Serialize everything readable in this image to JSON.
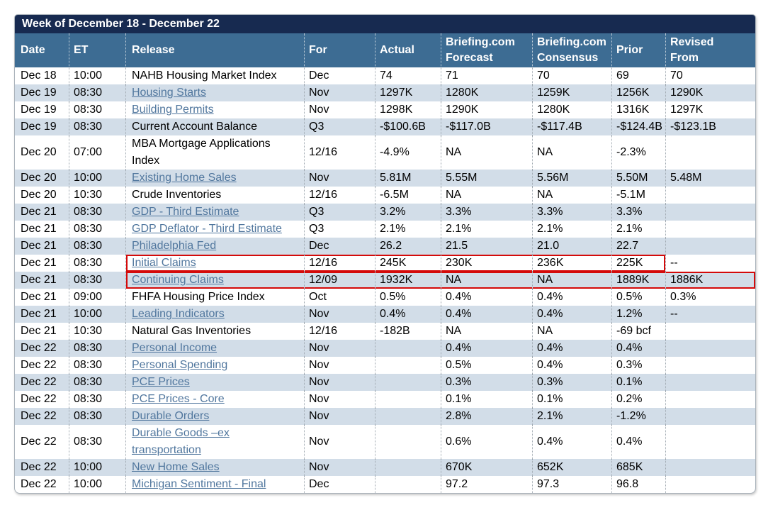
{
  "title": "Week of December 18 - December 22",
  "colors": {
    "title_bar": "#172a50",
    "header_row": "#3d6c93",
    "stripe_row": "#d2dde8",
    "link": "#51779e",
    "highlight_box": "#d40a0a"
  },
  "table": {
    "columns": [
      {
        "key": "date",
        "label": [
          "Date"
        ]
      },
      {
        "key": "et",
        "label": [
          "ET"
        ]
      },
      {
        "key": "release",
        "label": [
          "Release"
        ]
      },
      {
        "key": "for",
        "label": [
          "For"
        ]
      },
      {
        "key": "actual",
        "label": [
          "Actual"
        ]
      },
      {
        "key": "forecast",
        "label": [
          "Briefing.com",
          "Forecast"
        ]
      },
      {
        "key": "consensus",
        "label": [
          "Briefing.com",
          "Consensus"
        ]
      },
      {
        "key": "prior",
        "label": [
          "Prior"
        ]
      },
      {
        "key": "revised",
        "label": [
          "Revised",
          "From"
        ]
      }
    ],
    "rows": [
      {
        "date": "Dec 18",
        "et": "10:00",
        "release": "NAHB Housing Market Index",
        "link": false,
        "for": "Dec",
        "actual": "74",
        "forecast": "71",
        "consensus": "70",
        "prior": "69",
        "revised": "70",
        "highlight": ""
      },
      {
        "date": "Dec 19",
        "et": "08:30",
        "release": "Housing Starts",
        "link": true,
        "for": "Nov",
        "actual": "1297K",
        "forecast": "1280K",
        "consensus": "1259K",
        "prior": "1256K",
        "revised": "1290K",
        "highlight": ""
      },
      {
        "date": "Dec 19",
        "et": "08:30",
        "release": "Building Permits",
        "link": true,
        "for": "Nov",
        "actual": "1298K",
        "forecast": "1290K",
        "consensus": "1280K",
        "prior": "1316K",
        "revised": "1297K",
        "highlight": ""
      },
      {
        "date": "Dec 19",
        "et": "08:30",
        "release": "Current Account Balance",
        "link": false,
        "for": "Q3",
        "actual": "-$100.6B",
        "forecast": "-$117.0B",
        "consensus": "-$117.4B",
        "prior": "-$124.4B",
        "revised": "-$123.1B",
        "highlight": ""
      },
      {
        "date": "Dec 20",
        "et": "07:00",
        "release": "MBA Mortgage Applications Index",
        "link": false,
        "for": "12/16",
        "actual": "-4.9%",
        "forecast": "NA",
        "consensus": "NA",
        "prior": "-2.3%",
        "revised": "",
        "highlight": ""
      },
      {
        "date": "Dec 20",
        "et": "10:00",
        "release": "Existing Home Sales",
        "link": true,
        "for": "Nov",
        "actual": "5.81M",
        "forecast": "5.55M",
        "consensus": "5.56M",
        "prior": "5.50M",
        "revised": "5.48M",
        "highlight": ""
      },
      {
        "date": "Dec 20",
        "et": "10:30",
        "release": "Crude Inventories",
        "link": false,
        "for": "12/16",
        "actual": "-6.5M",
        "forecast": "NA",
        "consensus": "NA",
        "prior": "-5.1M",
        "revised": "",
        "highlight": ""
      },
      {
        "date": "Dec 21",
        "et": "08:30",
        "release": "GDP - Third Estimate",
        "link": true,
        "for": "Q3",
        "actual": "3.2%",
        "forecast": "3.3%",
        "consensus": "3.3%",
        "prior": "3.3%",
        "revised": "",
        "highlight": ""
      },
      {
        "date": "Dec 21",
        "et": "08:30",
        "release": "GDP Deflator - Third Estimate",
        "link": true,
        "for": "Q3",
        "actual": "2.1%",
        "forecast": "2.1%",
        "consensus": "2.1%",
        "prior": "2.1%",
        "revised": "",
        "highlight": ""
      },
      {
        "date": "Dec 21",
        "et": "08:30",
        "release": "Philadelphia Fed",
        "link": true,
        "for": "Dec",
        "actual": "26.2",
        "forecast": "21.5",
        "consensus": "21.0",
        "prior": "22.7",
        "revised": "",
        "highlight": ""
      },
      {
        "date": "Dec 21",
        "et": "08:30",
        "release": "Initial Claims",
        "link": true,
        "for": "12/16",
        "actual": "245K",
        "forecast": "230K",
        "consensus": "236K",
        "prior": "225K",
        "revised": "--",
        "highlight": "box1"
      },
      {
        "date": "Dec 21",
        "et": "08:30",
        "release": "Continuing Claims",
        "link": true,
        "for": "12/09",
        "actual": "1932K",
        "forecast": "NA",
        "consensus": "NA",
        "prior": "1889K",
        "revised": "1886K",
        "highlight": "box2"
      },
      {
        "date": "Dec 21",
        "et": "09:00",
        "release": "FHFA Housing Price Index",
        "link": false,
        "for": "Oct",
        "actual": "0.5%",
        "forecast": "0.4%",
        "consensus": "0.4%",
        "prior": "0.5%",
        "revised": "0.3%",
        "highlight": ""
      },
      {
        "date": "Dec 21",
        "et": "10:00",
        "release": "Leading Indicators",
        "link": true,
        "for": "Nov",
        "actual": "0.4%",
        "forecast": "0.4%",
        "consensus": "0.4%",
        "prior": "1.2%",
        "revised": "--",
        "highlight": ""
      },
      {
        "date": "Dec 21",
        "et": "10:30",
        "release": "Natural Gas Inventories",
        "link": false,
        "for": "12/16",
        "actual": "-182B",
        "forecast": "NA",
        "consensus": "NA",
        "prior": "-69 bcf",
        "revised": "",
        "highlight": ""
      },
      {
        "date": "Dec 22",
        "et": "08:30",
        "release": "Personal Income",
        "link": true,
        "for": "Nov",
        "actual": "",
        "forecast": "0.4%",
        "consensus": "0.4%",
        "prior": "0.4%",
        "revised": "",
        "highlight": ""
      },
      {
        "date": "Dec 22",
        "et": "08:30",
        "release": "Personal Spending",
        "link": true,
        "for": "Nov",
        "actual": "",
        "forecast": "0.5%",
        "consensus": "0.4%",
        "prior": "0.3%",
        "revised": "",
        "highlight": ""
      },
      {
        "date": "Dec 22",
        "et": "08:30",
        "release": "PCE Prices",
        "link": true,
        "for": "Nov",
        "actual": "",
        "forecast": "0.3%",
        "consensus": "0.3%",
        "prior": "0.1%",
        "revised": "",
        "highlight": ""
      },
      {
        "date": "Dec 22",
        "et": "08:30",
        "release": "PCE Prices - Core",
        "link": true,
        "for": "Nov",
        "actual": "",
        "forecast": "0.1%",
        "consensus": "0.1%",
        "prior": "0.2%",
        "revised": "",
        "highlight": ""
      },
      {
        "date": "Dec 22",
        "et": "08:30",
        "release": "Durable Orders",
        "link": true,
        "for": "Nov",
        "actual": "",
        "forecast": "2.8%",
        "consensus": "2.1%",
        "prior": "-1.2%",
        "revised": "",
        "highlight": ""
      },
      {
        "date": "Dec 22",
        "et": "08:30",
        "release": "Durable Goods –ex transportation",
        "link": true,
        "for": "Nov",
        "actual": "",
        "forecast": "0.6%",
        "consensus": "0.4%",
        "prior": "0.4%",
        "revised": "",
        "highlight": ""
      },
      {
        "date": "Dec 22",
        "et": "10:00",
        "release": "New Home Sales",
        "link": true,
        "for": "Nov",
        "actual": "",
        "forecast": "670K",
        "consensus": "652K",
        "prior": "685K",
        "revised": "",
        "highlight": ""
      },
      {
        "date": "Dec 22",
        "et": "10:00",
        "release": "Michigan Sentiment - Final",
        "link": true,
        "for": "Dec",
        "actual": "",
        "forecast": "97.2",
        "consensus": "97.3",
        "prior": "96.8",
        "revised": "",
        "highlight": ""
      }
    ]
  }
}
